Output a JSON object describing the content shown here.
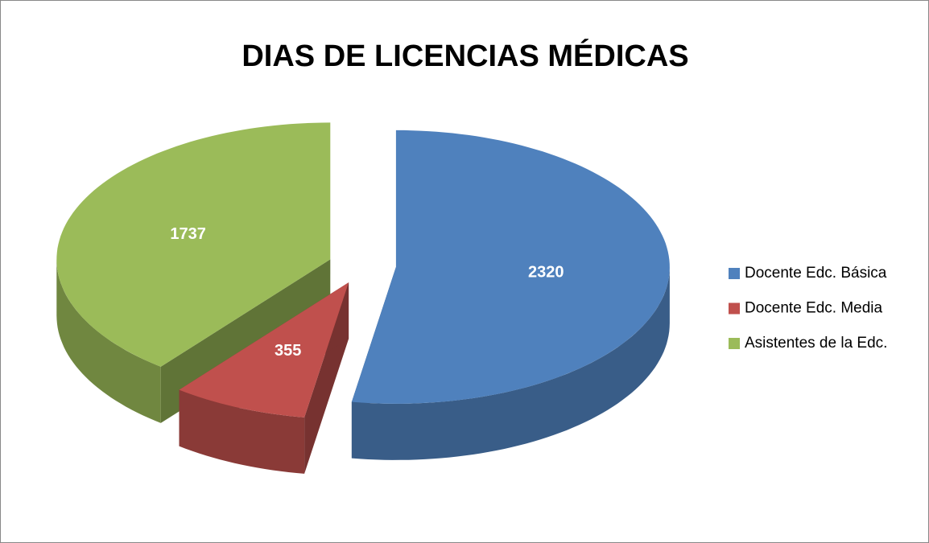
{
  "chart_data": {
    "type": "pie",
    "title": "DIAS DE LICENCIAS MÉDICAS",
    "categories": [
      "Docente Edc. Básica",
      "Docente Edc. Media",
      "Asistentes de la Edc."
    ],
    "values": [
      2320,
      355,
      1737
    ],
    "colors": [
      "#4f81bd",
      "#c0504d",
      "#9bbb59"
    ],
    "legend": "right"
  }
}
